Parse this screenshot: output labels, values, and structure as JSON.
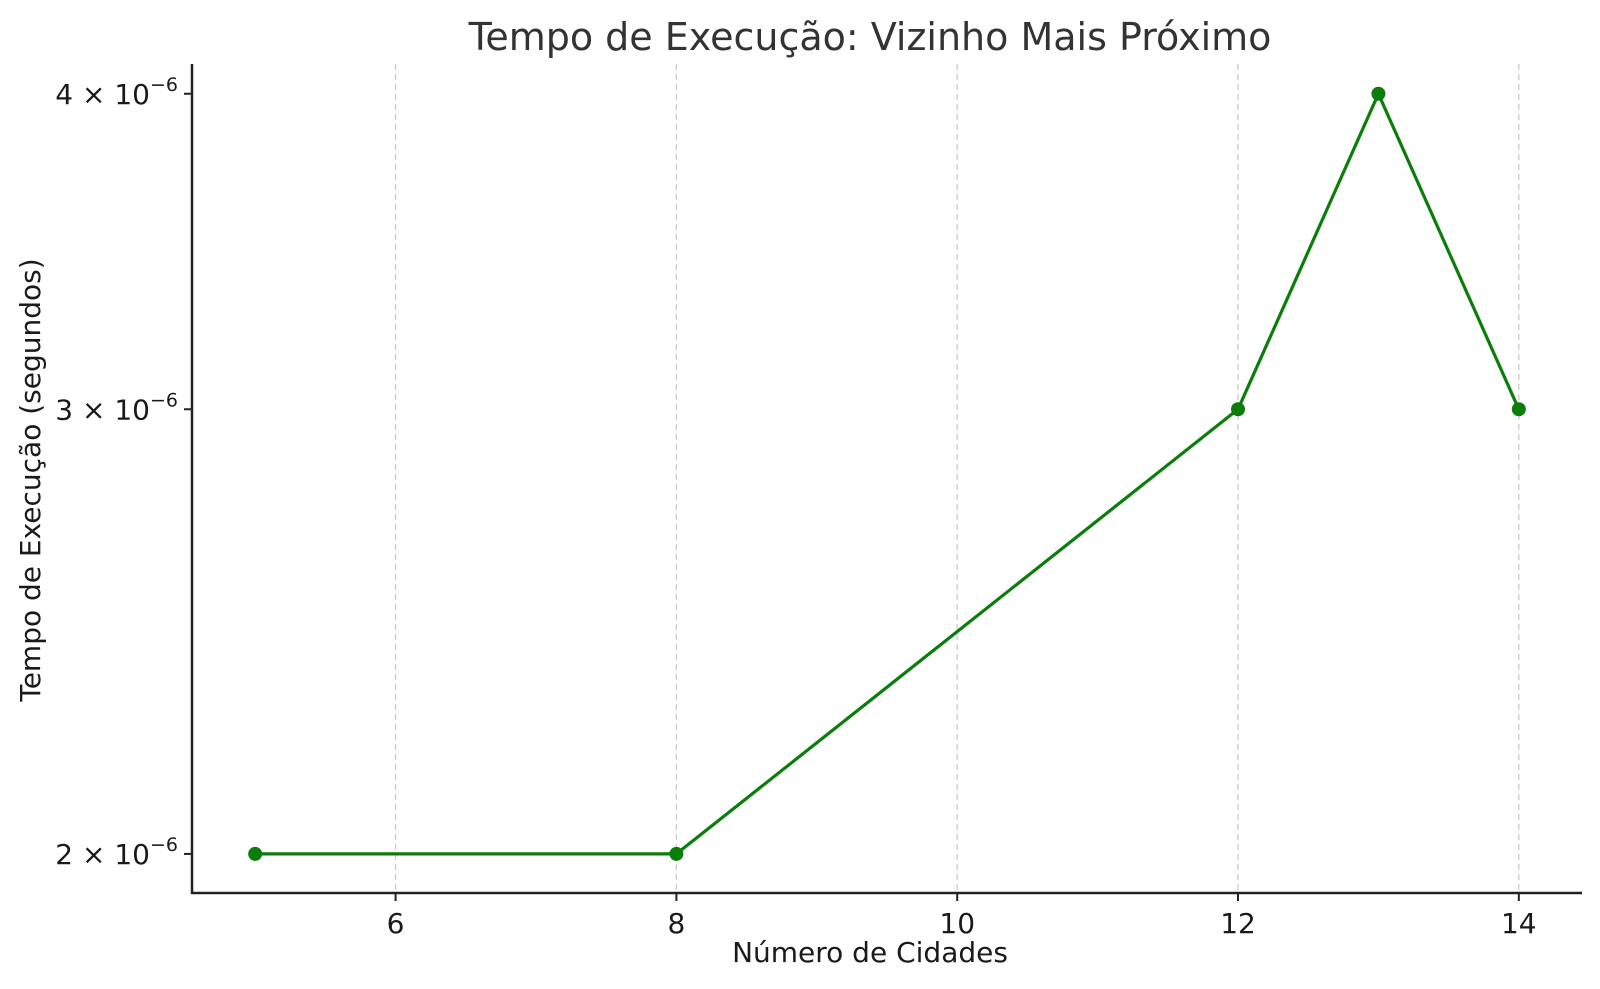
{
  "chart_data": {
    "type": "line",
    "title": "Tempo de Execução: Vizinho Mais Próximo",
    "xlabel": "Número de Cidades",
    "ylabel": "Tempo de Execução (segundos)",
    "x": [
      5,
      8,
      12,
      13,
      14
    ],
    "series": [
      {
        "values": [
          2e-06,
          2e-06,
          3e-06,
          4e-06,
          3e-06
        ]
      }
    ],
    "xlim": [
      4.55,
      14.45
    ],
    "ylim": [
      1.93e-06,
      4.11e-06
    ],
    "yscale": "log",
    "xticks": [
      6,
      8,
      10,
      12,
      14
    ],
    "xtick_labels": [
      "6",
      "8",
      "10",
      "12",
      "14"
    ],
    "yticks": [
      2e-06,
      3e-06,
      4e-06
    ],
    "ytick_labels": [
      {
        "mantissa": "2",
        "times": "×",
        "base": "10",
        "exp": "−6"
      },
      {
        "mantissa": "3",
        "times": "×",
        "base": "10",
        "exp": "−6"
      },
      {
        "mantissa": "4",
        "times": "×",
        "base": "10",
        "exp": "−6"
      }
    ],
    "grid": "x",
    "line_color": "#0a7d0a",
    "marker": "circle"
  }
}
